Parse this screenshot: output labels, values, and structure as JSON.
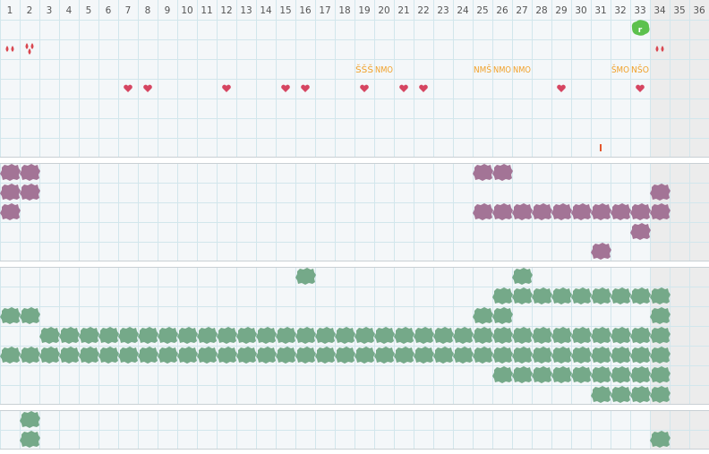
{
  "header": {
    "columns": [
      "1",
      "2",
      "3",
      "4",
      "5",
      "6",
      "7",
      "8",
      "9",
      "10",
      "11",
      "12",
      "13",
      "14",
      "15",
      "16",
      "17",
      "18",
      "19",
      "20",
      "21",
      "22",
      "23",
      "24",
      "25",
      "26",
      "27",
      "28",
      "29",
      "30",
      "31",
      "32",
      "33",
      "34",
      "35",
      "36"
    ]
  },
  "colors": {
    "background": "#f4f7f9",
    "grid": "#d2e6ec",
    "header_text": "#555555",
    "shaded_column": "#ececec",
    "divider": "#c9d0d4",
    "drop": "#d9464f",
    "heart": "#d64561",
    "letters": "#f0a12a",
    "tick": "#e4572e",
    "badge": "#5cc14d",
    "purple": "#a37496",
    "green": "#75a989"
  },
  "icons": {
    "drop": "drop-icon",
    "heart": "heart-icon",
    "badge": "flag-badge-icon",
    "tick": "tick-mark-icon",
    "purple_blob": "purple-blob-icon",
    "green_blob": "green-blob-icon"
  },
  "top_panel": {
    "badge": {
      "col": 33,
      "row": 1
    },
    "drops": [
      {
        "col": 1,
        "row": 2,
        "count": 2
      },
      {
        "col": 2,
        "row": 2,
        "count": 3
      },
      {
        "col": 34,
        "row": 2,
        "count": 2
      }
    ],
    "letter_groups": [
      {
        "col": 19,
        "row": 3,
        "text": "ŠŠŠ"
      },
      {
        "col": 20,
        "row": 3,
        "text": "NMO"
      },
      {
        "col": 25,
        "row": 3,
        "text": "NMŠ"
      },
      {
        "col": 26,
        "row": 3,
        "text": "NMO"
      },
      {
        "col": 27,
        "row": 3,
        "text": "NMO"
      },
      {
        "col": 32,
        "row": 3,
        "text": "ŠMO"
      },
      {
        "col": 33,
        "row": 3,
        "text": "NŠO"
      }
    ],
    "hearts": [
      {
        "col": 7,
        "row": 4
      },
      {
        "col": 8,
        "row": 4
      },
      {
        "col": 12,
        "row": 4
      },
      {
        "col": 15,
        "row": 4
      },
      {
        "col": 16,
        "row": 4
      },
      {
        "col": 19,
        "row": 4
      },
      {
        "col": 21,
        "row": 4
      },
      {
        "col": 22,
        "row": 4
      },
      {
        "col": 29,
        "row": 4
      },
      {
        "col": 33,
        "row": 4
      }
    ],
    "ticks": [
      {
        "col": 31,
        "row": 7
      }
    ]
  },
  "purple_panel": {
    "rows": [
      [
        1,
        2,
        25,
        26
      ],
      [
        1,
        2,
        34
      ],
      [
        1,
        25,
        26,
        27,
        28,
        29,
        30,
        31,
        32,
        33,
        34
      ],
      [
        33
      ],
      [
        31
      ]
    ]
  },
  "green_panel": {
    "rows": [
      [
        16,
        27
      ],
      [
        26,
        27,
        28,
        29,
        30,
        31,
        32,
        33,
        34
      ],
      [
        1,
        2,
        25,
        26,
        34
      ],
      [
        3,
        4,
        5,
        6,
        7,
        8,
        9,
        10,
        11,
        12,
        13,
        14,
        15,
        16,
        17,
        18,
        19,
        20,
        21,
        22,
        23,
        24,
        25,
        26,
        27,
        28,
        29,
        30,
        31,
        32,
        33,
        34
      ],
      [
        1,
        2,
        3,
        4,
        5,
        6,
        7,
        8,
        9,
        10,
        11,
        12,
        13,
        14,
        15,
        16,
        17,
        18,
        19,
        20,
        21,
        22,
        23,
        24,
        25,
        26,
        27,
        28,
        29,
        30,
        31,
        32,
        33,
        34
      ],
      [
        26,
        27,
        28,
        29,
        30,
        31,
        32,
        33,
        34
      ],
      [
        31,
        32,
        33,
        34
      ]
    ]
  },
  "bottom_panel": {
    "rows": [
      [
        2
      ],
      [
        2,
        34
      ]
    ]
  }
}
